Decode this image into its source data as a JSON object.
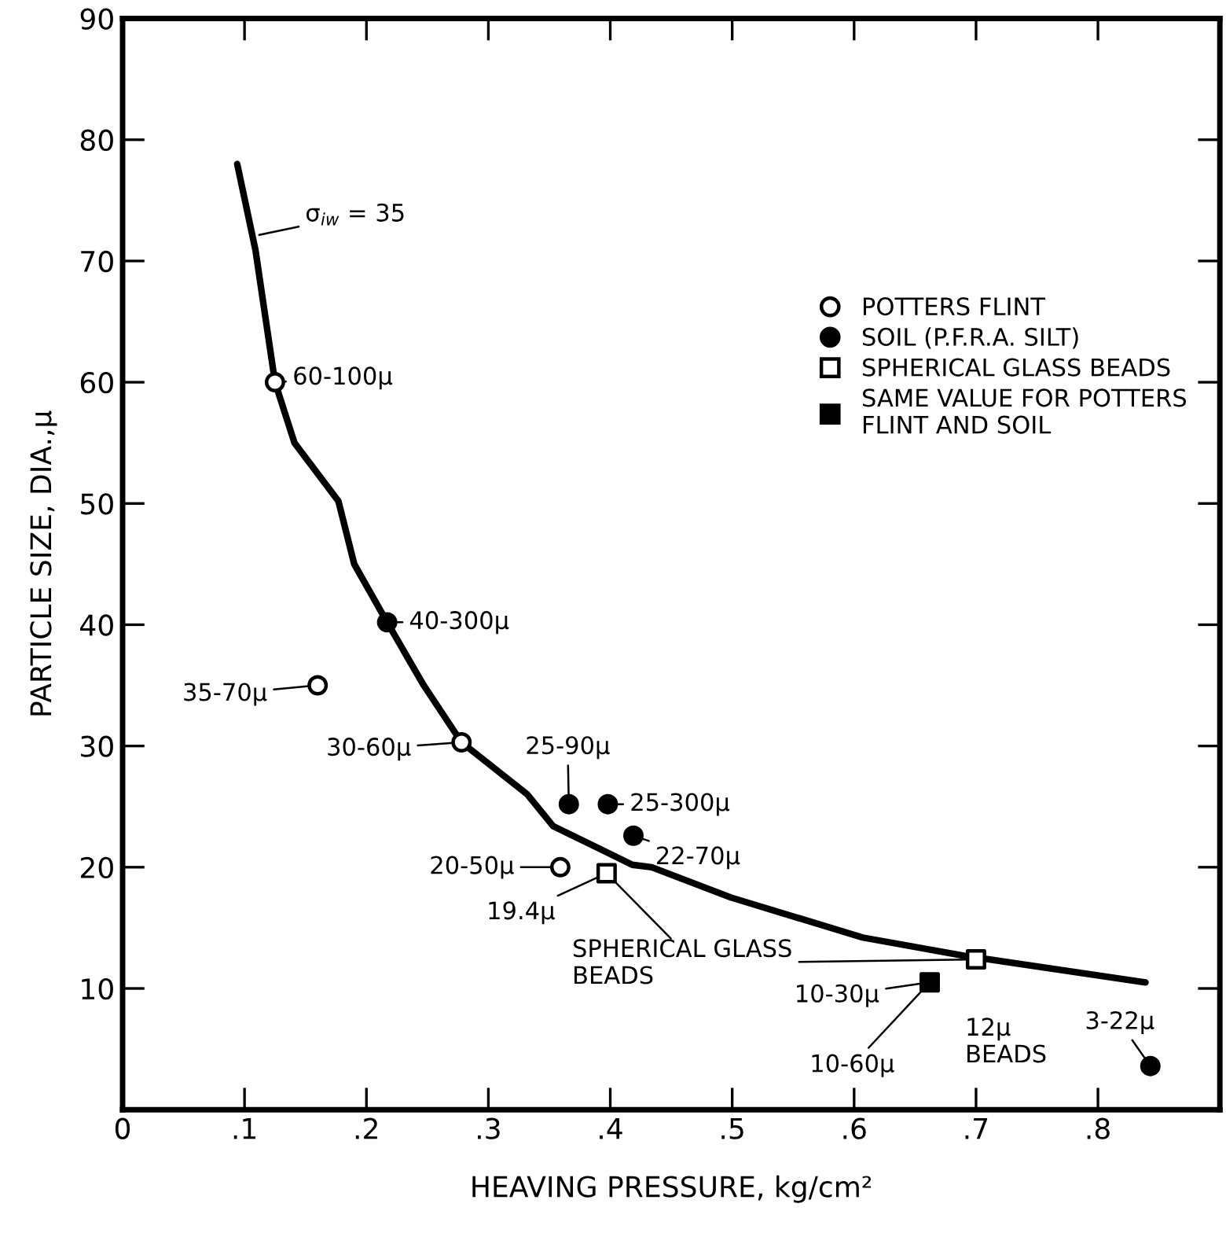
{
  "chart_data": {
    "type": "scatter",
    "xlabel": "HEAVING PRESSURE, kg/cm²",
    "ylabel": "PARTICLE SIZE, DIA.,μ",
    "xlim": [
      0,
      0.9
    ],
    "ylim": [
      0,
      90
    ],
    "xticks": [
      0,
      {
        "value": 0.1,
        "label": ".1"
      },
      {
        "value": 0.2,
        "label": ".2"
      },
      {
        "value": 0.3,
        "label": ".3"
      },
      {
        "value": 0.4,
        "label": ".4"
      },
      {
        "value": 0.5,
        "label": ".5"
      },
      {
        "value": 0.6,
        "label": ".6"
      },
      {
        "value": 0.7,
        "label": ".7"
      },
      {
        "value": 0.8,
        "label": ".8"
      }
    ],
    "yticks": [
      {
        "value": 0,
        "label": null
      },
      10,
      20,
      30,
      40,
      50,
      60,
      70,
      80,
      90
    ],
    "grid": false,
    "legend": "right",
    "series": [
      {
        "type": "line",
        "color": "#000000",
        "marker": "none",
        "x": [
          0.094,
          0.109,
          0.125,
          0.141,
          0.177,
          0.19,
          0.217,
          0.247,
          0.278,
          0.332,
          0.353,
          0.418,
          0.434,
          0.499,
          0.607,
          0.69,
          0.839
        ],
        "values": [
          78,
          70.9,
          60,
          55,
          50.2,
          45,
          40.2,
          35,
          30.3,
          26,
          23.4,
          20.2,
          20,
          17.5,
          14.2,
          12.7,
          10.5
        ]
      },
      {
        "name": "POTTERS FLINT",
        "color": "#ffffff",
        "marker": "circle",
        "x": [
          0.125,
          0.16,
          0.278,
          0.359
        ],
        "values": [
          60,
          35,
          30.3,
          20
        ]
      },
      {
        "name": "SOIL (P.F.R.A. SILT)",
        "color": "#000000",
        "marker": "circle",
        "x": [
          0.217,
          0.366,
          0.398,
          0.419,
          0.843
        ],
        "values": [
          40.2,
          25.2,
          25.2,
          22.6,
          3.6
        ]
      },
      {
        "name": "SPHERICAL GLASS BEADS",
        "color": "#ffffff",
        "marker": "square",
        "x": [
          0.397,
          0.7
        ],
        "values": [
          19.5,
          12.4
        ]
      },
      {
        "name": "SAME VALUE FOR POTTERS\nFLINT AND SOIL",
        "color": "#000000",
        "marker": "square",
        "x": [
          0.662
        ],
        "values": [
          10.5
        ]
      }
    ],
    "annotations": [
      {
        "text": "60-100μ",
        "x": 0.125,
        "y": 60
      },
      {
        "text": "40-300μ",
        "x": 0.217,
        "y": 40.2
      },
      {
        "text": "35-70μ",
        "x": 0.16,
        "y": 35
      },
      {
        "text": "30-60μ",
        "x": 0.278,
        "y": 30.3
      },
      {
        "text": "25-90μ",
        "x": 0.366,
        "y": 25.2
      },
      {
        "text": "25-300μ",
        "x": 0.398,
        "y": 25.2
      },
      {
        "text": "22-70μ",
        "x": 0.419,
        "y": 22.6
      },
      {
        "text": "20-50μ",
        "x": 0.359,
        "y": 20
      },
      {
        "text": "19.4μ",
        "x": 0.397,
        "y": 19.5
      },
      {
        "text": "SPHERICAL GLASS\nBEADS",
        "x": 0.7,
        "y": 12.4
      },
      {
        "text": "10-30μ",
        "x": 0.662,
        "y": 10.5
      },
      {
        "text": "10-60μ",
        "x": 0.662,
        "y": 10.5
      },
      {
        "text": "12μ\nBEADS",
        "x": 0.7,
        "y": 12.4
      },
      {
        "text": "3-22μ",
        "x": 0.843,
        "y": 3.6
      },
      {
        "text": "σ$_{iw}$ = 35",
        "x": 0.105,
        "y": 72
      }
    ]
  }
}
